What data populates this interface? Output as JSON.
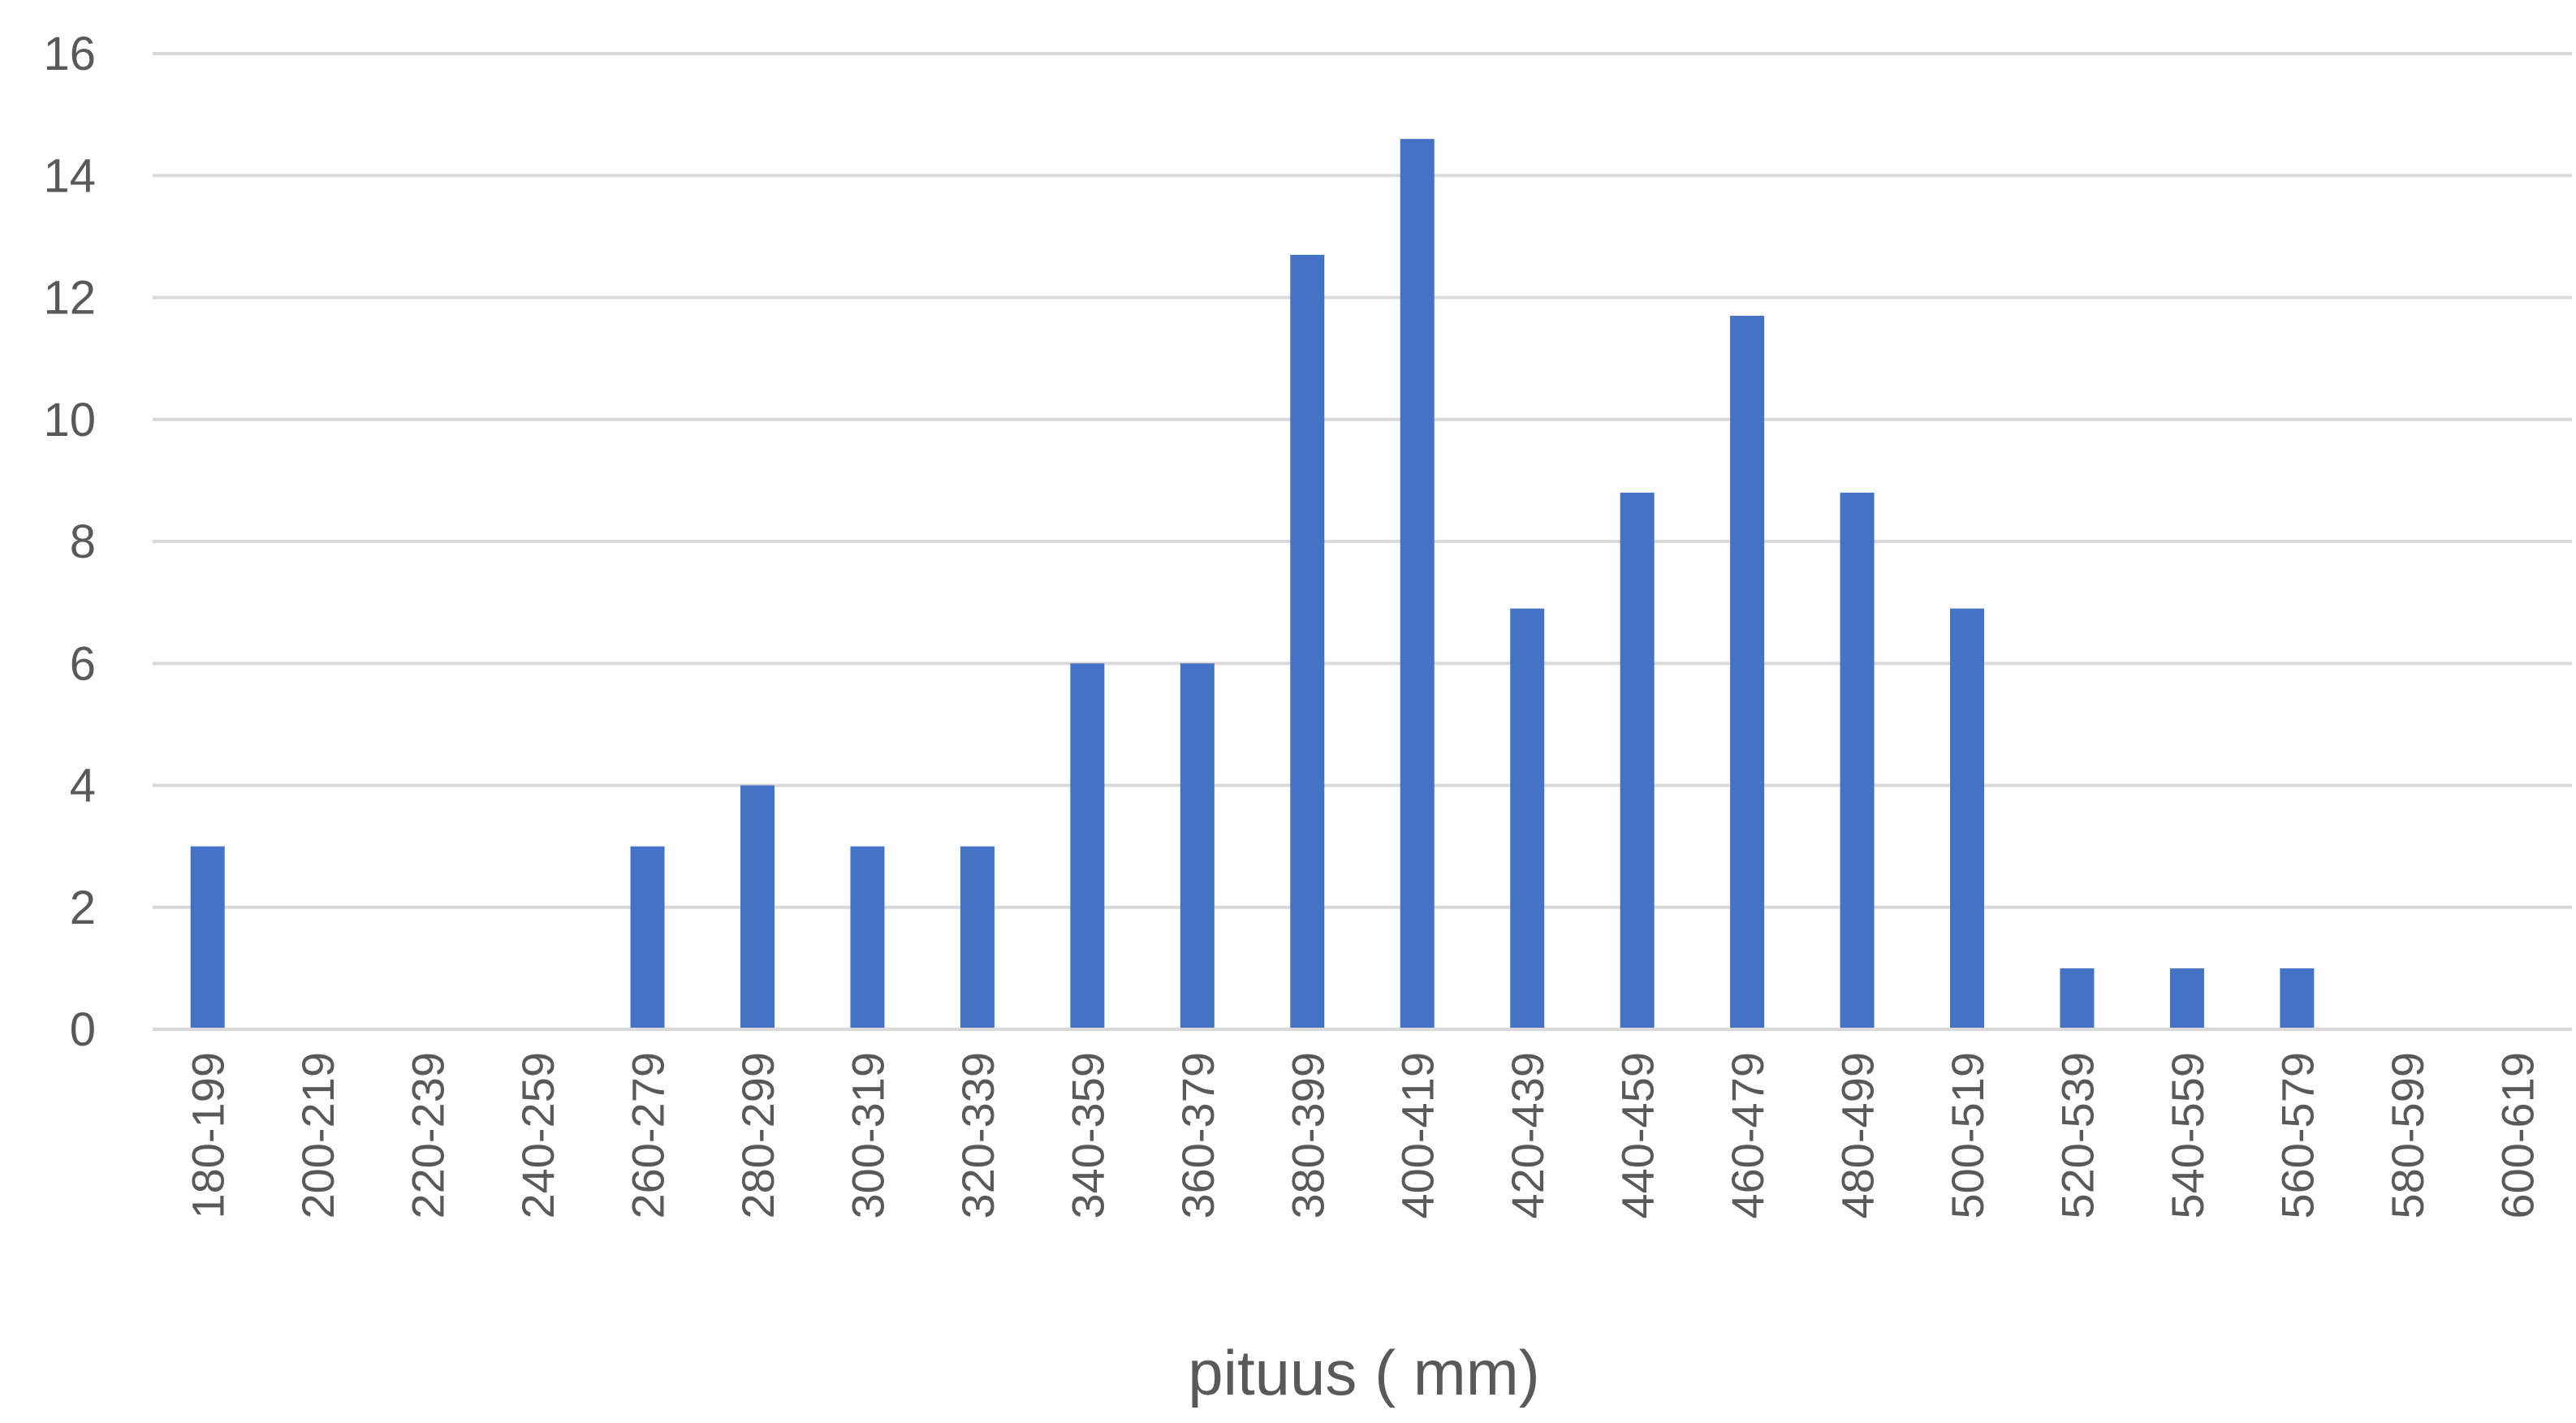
{
  "chart_data": {
    "type": "bar",
    "title": "",
    "xlabel": "pituus ( mm)",
    "ylabel": "",
    "ylim": [
      0,
      16
    ],
    "yticks": [
      0,
      2,
      4,
      6,
      8,
      10,
      12,
      14,
      16
    ],
    "grid": "horizontal",
    "legend": "none",
    "bar_color": "#4472C4",
    "grid_color": "#D9D9D9",
    "categories": [
      "180-199",
      "200-219",
      "220-239",
      "240-259",
      "260-279",
      "280-299",
      "300-319",
      "320-339",
      "340-359",
      "360-379",
      "380-399",
      "400-419",
      "420-439",
      "440-459",
      "460-479",
      "480-499",
      "500-519",
      "520-539",
      "540-559",
      "560-579",
      "580-599",
      "600-619"
    ],
    "values": [
      3,
      0,
      0,
      0,
      3,
      4,
      3,
      3,
      6,
      6,
      12.7,
      14.6,
      6.9,
      8.8,
      11.7,
      8.8,
      6.9,
      1,
      1,
      1,
      0,
      0
    ]
  }
}
